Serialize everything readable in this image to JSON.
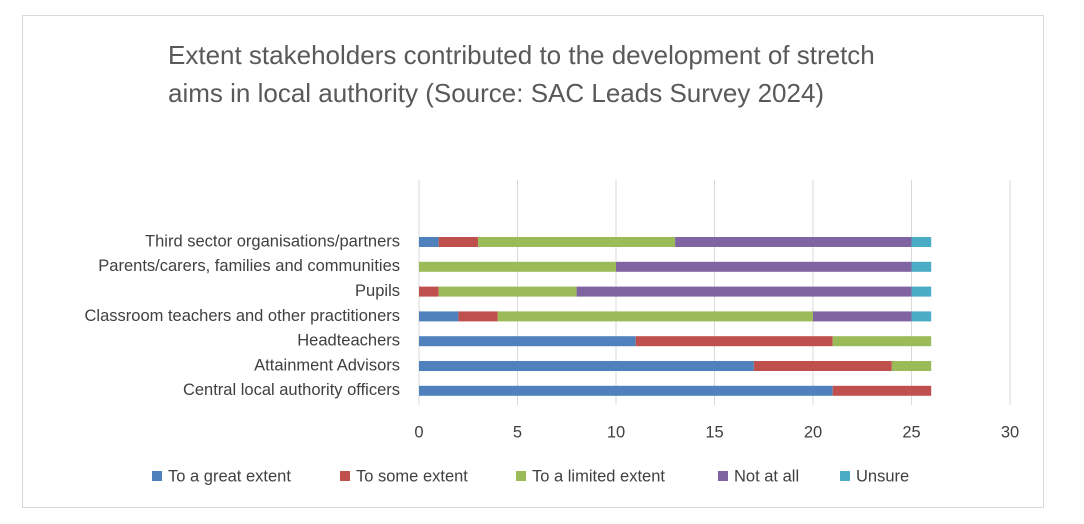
{
  "chart_data": {
    "type": "stacked-bar-horizontal",
    "title": "Extent stakeholders contributed to the development of stretch aims in local authority (Source: SAC Leads Survey 2024)",
    "categories": [
      "Third sector organisations/partners",
      "Parents/carers, families and communities",
      "Pupils",
      "Classroom teachers and other practitioners",
      "Headteachers",
      "Attainment Advisors",
      "Central local authority officers"
    ],
    "series": [
      {
        "name": "To a great extent",
        "color": "#4f81bd",
        "values": [
          1,
          0,
          0,
          2,
          11,
          17,
          21
        ]
      },
      {
        "name": "To some extent",
        "color": "#c0504d",
        "values": [
          2,
          0,
          1,
          2,
          10,
          7,
          5
        ]
      },
      {
        "name": "To a limited extent",
        "color": "#9bbb59",
        "values": [
          10,
          10,
          7,
          16,
          5,
          2,
          0
        ]
      },
      {
        "name": "Not at all",
        "color": "#8064a2",
        "values": [
          12,
          15,
          17,
          5,
          0,
          0,
          0
        ]
      },
      {
        "name": "Unsure",
        "color": "#4bacc6",
        "values": [
          1,
          1,
          1,
          1,
          0,
          0,
          0
        ]
      }
    ],
    "xlim": [
      0,
      30
    ],
    "xticks": [
      0,
      5,
      10,
      15,
      20,
      25,
      30
    ],
    "grid": true,
    "legend": "bottom"
  }
}
